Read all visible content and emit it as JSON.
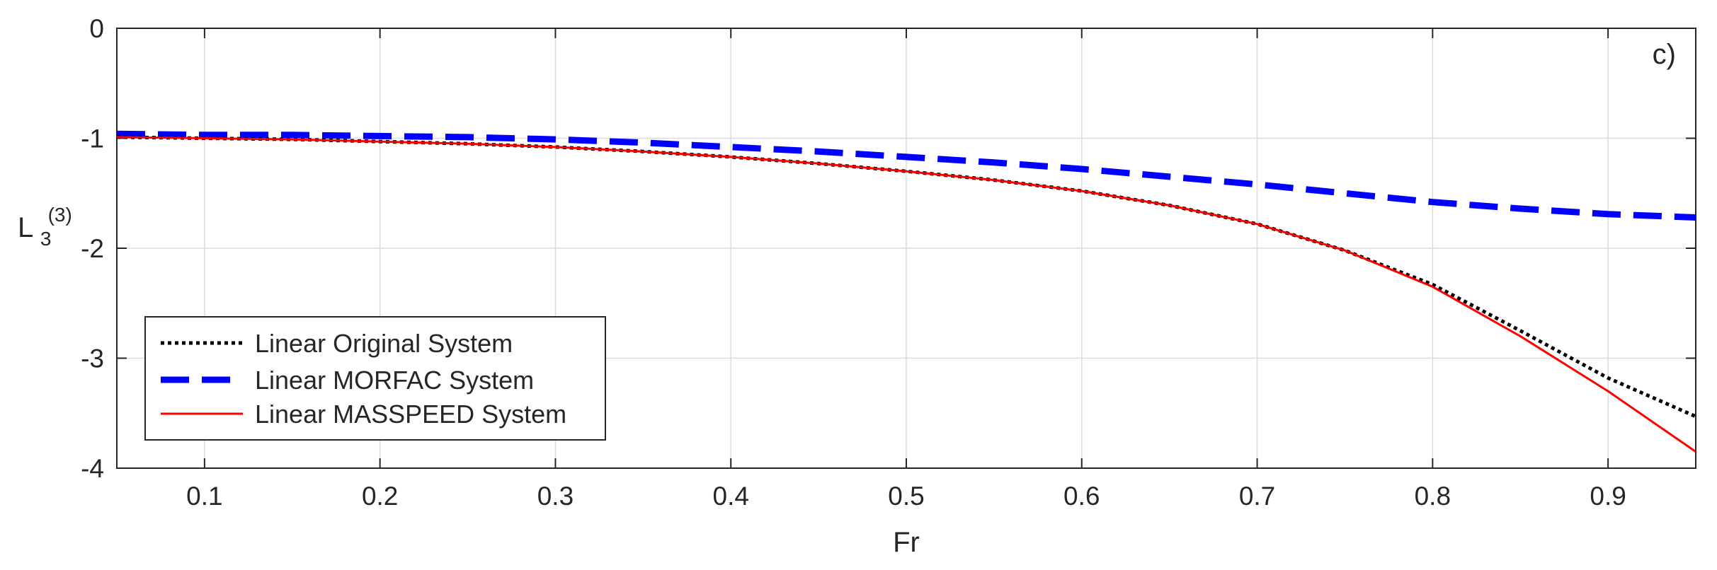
{
  "chart_data": {
    "type": "line",
    "panel_label": "c)",
    "xlabel": "Fr",
    "ylabel": {
      "main": "L",
      "subscript": "3",
      "superscript": "(3)"
    },
    "xlim": [
      0.05,
      0.95
    ],
    "ylim": [
      -4,
      0
    ],
    "xticks": [
      0.1,
      0.2,
      0.3,
      0.4,
      0.5,
      0.6,
      0.7,
      0.8,
      0.9
    ],
    "yticks": [
      0,
      -1,
      -2,
      -3,
      -4
    ],
    "xtick_labels": [
      "0.1",
      "0.2",
      "0.3",
      "0.4",
      "0.5",
      "0.6",
      "0.7",
      "0.8",
      "0.9"
    ],
    "ytick_labels": [
      "0",
      "-1",
      "-2",
      "-3",
      "-4"
    ],
    "grid": true,
    "legend_position": "bottom-left",
    "x": [
      0.05,
      0.1,
      0.15,
      0.2,
      0.25,
      0.3,
      0.35,
      0.4,
      0.45,
      0.5,
      0.55,
      0.6,
      0.65,
      0.7,
      0.75,
      0.8,
      0.85,
      0.9,
      0.95
    ],
    "series": [
      {
        "name": "Linear Original System",
        "style": "dotted",
        "color": "#000000",
        "values": [
          -0.99,
          -1.0,
          -1.01,
          -1.03,
          -1.05,
          -1.08,
          -1.12,
          -1.17,
          -1.23,
          -1.3,
          -1.38,
          -1.48,
          -1.61,
          -1.78,
          -2.02,
          -2.33,
          -2.75,
          -3.18,
          -3.53
        ]
      },
      {
        "name": "Linear MORFAC System",
        "style": "dashed",
        "color": "#0000ff",
        "values": [
          -0.96,
          -0.97,
          -0.97,
          -0.98,
          -0.99,
          -1.01,
          -1.04,
          -1.08,
          -1.12,
          -1.17,
          -1.22,
          -1.28,
          -1.35,
          -1.42,
          -1.5,
          -1.58,
          -1.64,
          -1.69,
          -1.72
        ]
      },
      {
        "name": "Linear MASSPEED System",
        "style": "solid",
        "color": "#ff0000",
        "values": [
          -0.99,
          -1.0,
          -1.01,
          -1.03,
          -1.05,
          -1.08,
          -1.12,
          -1.17,
          -1.23,
          -1.3,
          -1.38,
          -1.48,
          -1.61,
          -1.78,
          -2.02,
          -2.35,
          -2.8,
          -3.3,
          -3.85
        ]
      }
    ]
  }
}
